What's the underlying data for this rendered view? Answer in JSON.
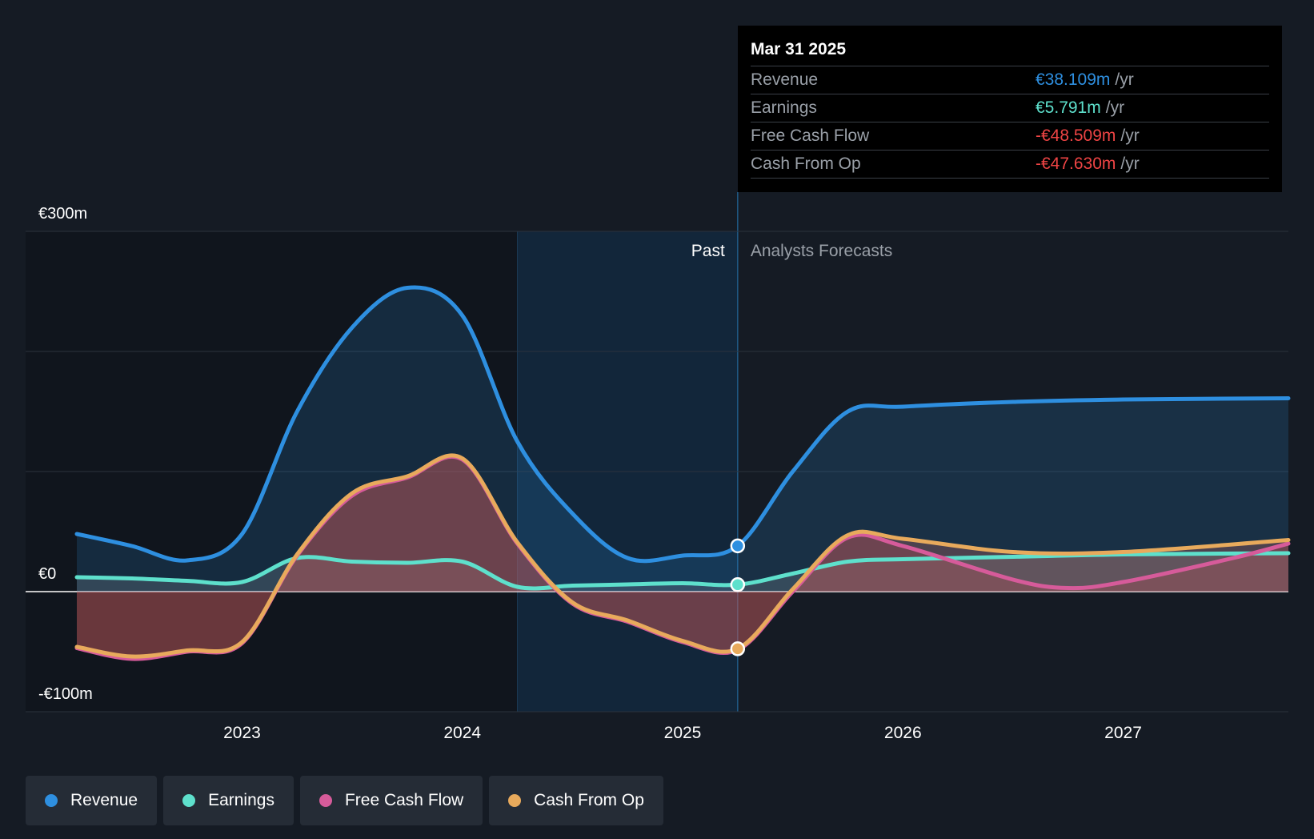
{
  "chart_data": {
    "type": "line",
    "y_unit_labels": [
      "€300m",
      "€0",
      "-€100m"
    ],
    "ylim": [
      -100,
      300
    ],
    "x_range": [
      2022.25,
      2027.75
    ],
    "x_ticks": [
      {
        "value": 2023,
        "label": "2023"
      },
      {
        "value": 2024,
        "label": "2024"
      },
      {
        "value": 2025,
        "label": "2025"
      },
      {
        "value": 2026,
        "label": "2026"
      },
      {
        "value": 2027,
        "label": "2027"
      }
    ],
    "y_ticks": [
      300,
      200,
      100,
      0,
      -100
    ],
    "highlight_start": 2024.25,
    "current_date": 2025.25,
    "past_label": "Past",
    "forecast_label": "Analysts Forecasts",
    "series": [
      {
        "name": "Revenue",
        "color": "#2e8fe0",
        "points": [
          [
            2022.25,
            48
          ],
          [
            2022.5,
            38
          ],
          [
            2022.75,
            26
          ],
          [
            2023.0,
            48
          ],
          [
            2023.25,
            150
          ],
          [
            2023.5,
            220
          ],
          [
            2023.75,
            253
          ],
          [
            2024.0,
            230
          ],
          [
            2024.25,
            125
          ],
          [
            2024.5,
            65
          ],
          [
            2024.75,
            28
          ],
          [
            2025.0,
            30
          ],
          [
            2025.25,
            38.1
          ],
          [
            2025.5,
            100
          ],
          [
            2025.75,
            150
          ],
          [
            2026.0,
            154
          ],
          [
            2026.5,
            158
          ],
          [
            2027.0,
            160
          ],
          [
            2027.75,
            161
          ]
        ]
      },
      {
        "name": "Earnings",
        "color": "#5ee0cc",
        "points": [
          [
            2022.25,
            12
          ],
          [
            2022.5,
            11
          ],
          [
            2022.75,
            9
          ],
          [
            2023.0,
            8
          ],
          [
            2023.25,
            28
          ],
          [
            2023.5,
            25
          ],
          [
            2023.75,
            24
          ],
          [
            2024.0,
            25
          ],
          [
            2024.25,
            4
          ],
          [
            2024.5,
            5
          ],
          [
            2024.75,
            6
          ],
          [
            2025.0,
            7
          ],
          [
            2025.25,
            5.8
          ],
          [
            2025.5,
            15
          ],
          [
            2025.75,
            25
          ],
          [
            2026.0,
            27
          ],
          [
            2026.5,
            29
          ],
          [
            2027.0,
            31
          ],
          [
            2027.75,
            32
          ]
        ]
      },
      {
        "name": "Free Cash Flow",
        "color": "#d65b9a",
        "points": [
          [
            2022.25,
            -47
          ],
          [
            2022.5,
            -56
          ],
          [
            2022.75,
            -50
          ],
          [
            2023.0,
            -43
          ],
          [
            2023.25,
            30
          ],
          [
            2023.5,
            80
          ],
          [
            2023.75,
            95
          ],
          [
            2024.0,
            110
          ],
          [
            2024.25,
            40
          ],
          [
            2024.5,
            -10
          ],
          [
            2024.75,
            -25
          ],
          [
            2025.0,
            -42
          ],
          [
            2025.25,
            -48.5
          ],
          [
            2025.5,
            0
          ],
          [
            2025.75,
            45
          ],
          [
            2026.0,
            38
          ],
          [
            2026.5,
            10
          ],
          [
            2026.75,
            3
          ],
          [
            2027.0,
            8
          ],
          [
            2027.5,
            28
          ],
          [
            2027.75,
            40
          ]
        ]
      },
      {
        "name": "Cash From Op",
        "color": "#e8aa5c",
        "points": [
          [
            2022.25,
            -46
          ],
          [
            2022.5,
            -54
          ],
          [
            2022.75,
            -49
          ],
          [
            2023.0,
            -42
          ],
          [
            2023.25,
            31
          ],
          [
            2023.5,
            82
          ],
          [
            2023.75,
            96
          ],
          [
            2024.0,
            111
          ],
          [
            2024.25,
            41
          ],
          [
            2024.5,
            -9
          ],
          [
            2024.75,
            -24
          ],
          [
            2025.0,
            -41
          ],
          [
            2025.25,
            -47.6
          ],
          [
            2025.5,
            2
          ],
          [
            2025.75,
            47
          ],
          [
            2026.0,
            44
          ],
          [
            2026.5,
            33
          ],
          [
            2027.0,
            33
          ],
          [
            2027.75,
            43
          ]
        ]
      }
    ]
  },
  "tooltip": {
    "date": "Mar 31 2025",
    "rows": [
      {
        "name": "Revenue",
        "value": "€38.109m",
        "unit": "/yr",
        "color": "#2e8fe0"
      },
      {
        "name": "Earnings",
        "value": "€5.791m",
        "unit": "/yr",
        "color": "#5ee0cc"
      },
      {
        "name": "Free Cash Flow",
        "value": "-€48.509m",
        "unit": "/yr",
        "color": "#ee4444"
      },
      {
        "name": "Cash From Op",
        "value": "-€47.630m",
        "unit": "/yr",
        "color": "#ee4444"
      }
    ]
  },
  "legend": [
    {
      "label": "Revenue",
      "color": "#2e8fe0"
    },
    {
      "label": "Earnings",
      "color": "#5ee0cc"
    },
    {
      "label": "Free Cash Flow",
      "color": "#d65b9a"
    },
    {
      "label": "Cash From Op",
      "color": "#e8aa5c"
    }
  ]
}
